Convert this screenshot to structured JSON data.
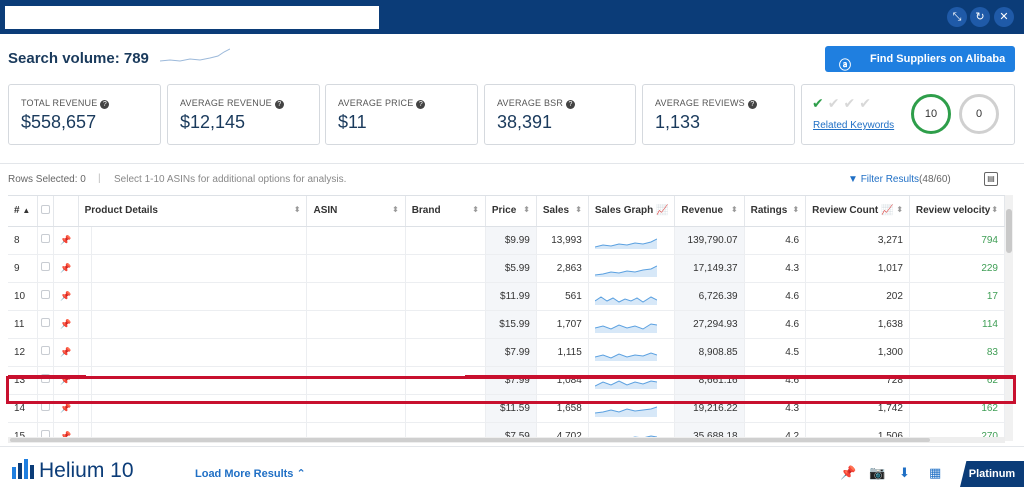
{
  "search_volume": {
    "label": "Search volume: 789"
  },
  "alibaba": {
    "label": "Find Suppliers on Alibaba"
  },
  "stats": [
    {
      "label": "TOTAL REVENUE",
      "value": "$558,657"
    },
    {
      "label": "AVERAGE REVENUE",
      "value": "$12,145"
    },
    {
      "label": "AVERAGE PRICE",
      "value": "$11"
    },
    {
      "label": "AVERAGE BSR",
      "value": "38,391"
    },
    {
      "label": "AVERAGE REVIEWS",
      "value": "1,133"
    }
  ],
  "keywords": {
    "link": "Related Keywords",
    "green_count": "10",
    "grey_count": "0"
  },
  "toolbar": {
    "rows_selected": "Rows Selected: 0",
    "separator": "|",
    "hint": "Select 1-10 ASINs for additional options for analysis.",
    "filter_label": "Filter Results",
    "filter_count": "(48/60)"
  },
  "columns": {
    "num": "#",
    "details": "Product Details",
    "asin": "ASIN",
    "brand": "Brand",
    "price": "Price",
    "sales": "Sales",
    "sales_graph": "Sales Graph",
    "revenue": "Revenue",
    "ratings": "Ratings",
    "review_count": "Review Count",
    "review_velocity": "Review velocity"
  },
  "rows": [
    {
      "num": "8",
      "price": "$9.99",
      "sales": "13,993",
      "revenue": "139,790.07",
      "rating": "4.6",
      "reviews": "3,271",
      "velocity": "794"
    },
    {
      "num": "9",
      "price": "$5.99",
      "sales": "2,863",
      "revenue": "17,149.37",
      "rating": "4.3",
      "reviews": "1,017",
      "velocity": "229"
    },
    {
      "num": "10",
      "price": "$11.99",
      "sales": "561",
      "revenue": "6,726.39",
      "rating": "4.6",
      "reviews": "202",
      "velocity": "17"
    },
    {
      "num": "11",
      "price": "$15.99",
      "sales": "1,707",
      "revenue": "27,294.93",
      "rating": "4.6",
      "reviews": "1,638",
      "velocity": "114"
    },
    {
      "num": "12",
      "price": "$7.99",
      "sales": "1,115",
      "revenue": "8,908.85",
      "rating": "4.5",
      "reviews": "1,300",
      "velocity": "83"
    },
    {
      "num": "13",
      "price": "$7.99",
      "sales": "1,084",
      "revenue": "8,661.16",
      "rating": "4.6",
      "reviews": "728",
      "velocity": "62"
    },
    {
      "num": "14",
      "price": "$11.59",
      "sales": "1,658",
      "revenue": "19,216.22",
      "rating": "4.3",
      "reviews": "1,742",
      "velocity": "162"
    },
    {
      "num": "15",
      "price": "$7.59",
      "sales": "4,702",
      "revenue": "35,688.18",
      "rating": "4.2",
      "reviews": "1,506",
      "velocity": "270"
    }
  ],
  "footer": {
    "logo": "Helium 10",
    "load_more": "Load More Results",
    "plan": "Platinum"
  },
  "colors": {
    "navy": "#0b3c78",
    "accent_blue": "#1f7fe0",
    "highlight_red": "#c8102e",
    "velocity_green": "#3f9e55"
  }
}
